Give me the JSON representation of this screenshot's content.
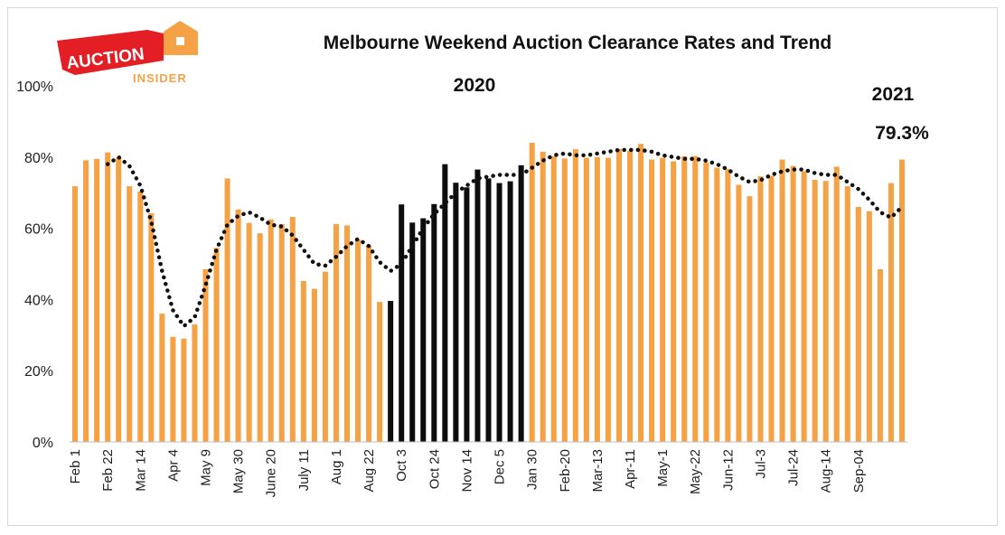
{
  "logo": {
    "word1": "AUCTION",
    "word2": "INSIDER"
  },
  "colors": {
    "bar_2020_2021": "#f4a245",
    "bar_lockdown": "#0d0d0d",
    "trend": "#111111",
    "logo_red": "#e31e24",
    "logo_orange": "#f4a245"
  },
  "chart_data": {
    "type": "bar",
    "title": "Melbourne Weekend Auction Clearance Rates and Trend",
    "annotations": {
      "year_2020": "2020",
      "year_2021": "2021",
      "latest_value": "79.3%"
    },
    "ylim": [
      0,
      100
    ],
    "yticks": [
      "0%",
      "20%",
      "40%",
      "60%",
      "80%",
      "100%"
    ],
    "xtick_labels": [
      "Feb 1",
      "Feb 22",
      "Mar 14",
      "Apr 4",
      "May 9",
      "May 30",
      "June 20",
      "July 11",
      "Aug 1",
      "Aug 22",
      "Oct 3",
      "Oct 24",
      "Nov 14",
      "Dec 5",
      "Jan 30",
      "Feb-20",
      "Mar-13",
      "Apr-11",
      "May-1",
      "May-22",
      "Jun-12",
      "Jul-3",
      "Jul-24",
      "Aug-14",
      "Sep-04"
    ],
    "series": [
      {
        "name": "",
        "values": [
          71.8,
          79.1,
          79.5,
          81.3,
          80.0,
          71.8,
          70.3,
          64.2,
          36.0,
          29.5,
          29.0,
          33.0,
          48.5,
          54.5,
          74.0,
          65.3,
          61.5,
          58.6,
          62.5,
          61.2,
          63.2,
          45.2,
          43.0,
          47.8,
          61.2,
          60.8,
          56.8,
          55.2,
          39.3,
          39.6,
          66.7,
          61.6,
          62.8,
          66.8,
          78.0,
          72.8,
          71.5,
          76.5,
          74.0,
          72.7,
          73.2,
          77.7,
          84.0,
          81.5,
          80.2,
          79.6,
          82.2,
          79.8,
          80.0,
          79.8,
          82.3,
          81.8,
          83.7,
          79.3,
          79.8,
          78.8,
          80.2,
          80.3,
          78.5,
          77.0,
          76.6,
          72.2,
          69.0,
          74.6,
          74.7,
          79.3,
          77.5,
          76.0,
          73.6,
          73.3,
          77.3,
          71.8,
          66.0,
          64.8,
          48.5,
          72.7,
          79.3
        ],
        "colors_by_bar": [
          "o",
          "o",
          "o",
          "o",
          "o",
          "o",
          "o",
          "o",
          "o",
          "o",
          "o",
          "o",
          "o",
          "o",
          "o",
          "o",
          "o",
          "o",
          "o",
          "o",
          "o",
          "o",
          "o",
          "o",
          "o",
          "o",
          "o",
          "o",
          "o",
          "k",
          "k",
          "k",
          "k",
          "k",
          "k",
          "k",
          "k",
          "k",
          "k",
          "k",
          "k",
          "k",
          "o",
          "o",
          "o",
          "o",
          "o",
          "o",
          "o",
          "o",
          "o",
          "o",
          "o",
          "o",
          "o",
          "o",
          "o",
          "o",
          "o",
          "o",
          "o",
          "o",
          "o",
          "o",
          "o",
          "o",
          "o",
          "o",
          "o",
          "o",
          "o",
          "o",
          "o",
          "o",
          "o",
          "o",
          "o"
        ]
      },
      {
        "name": "",
        "style": "dotted-trend",
        "values": [
          null,
          null,
          null,
          78.0,
          80.0,
          77.5,
          72.0,
          62.0,
          48.0,
          37.0,
          32.5,
          35.0,
          44.0,
          54.0,
          61.0,
          63.5,
          64.5,
          63.0,
          61.0,
          60.5,
          58.0,
          54.0,
          50.0,
          49.5,
          52.0,
          55.0,
          57.0,
          55.0,
          50.5,
          48.0,
          50.0,
          55.0,
          60.0,
          64.0,
          67.0,
          70.0,
          72.0,
          74.0,
          74.5,
          75.0,
          75.0,
          75.0,
          77.0,
          79.0,
          80.5,
          81.0,
          80.5,
          80.5,
          81.0,
          81.5,
          82.0,
          82.0,
          82.0,
          81.5,
          80.5,
          80.0,
          79.5,
          79.5,
          79.0,
          78.0,
          76.5,
          74.5,
          73.0,
          73.5,
          75.0,
          76.0,
          76.5,
          76.5,
          75.5,
          75.0,
          75.0,
          73.0,
          71.0,
          68.0,
          64.5,
          63.0,
          66.0
        ]
      }
    ]
  }
}
